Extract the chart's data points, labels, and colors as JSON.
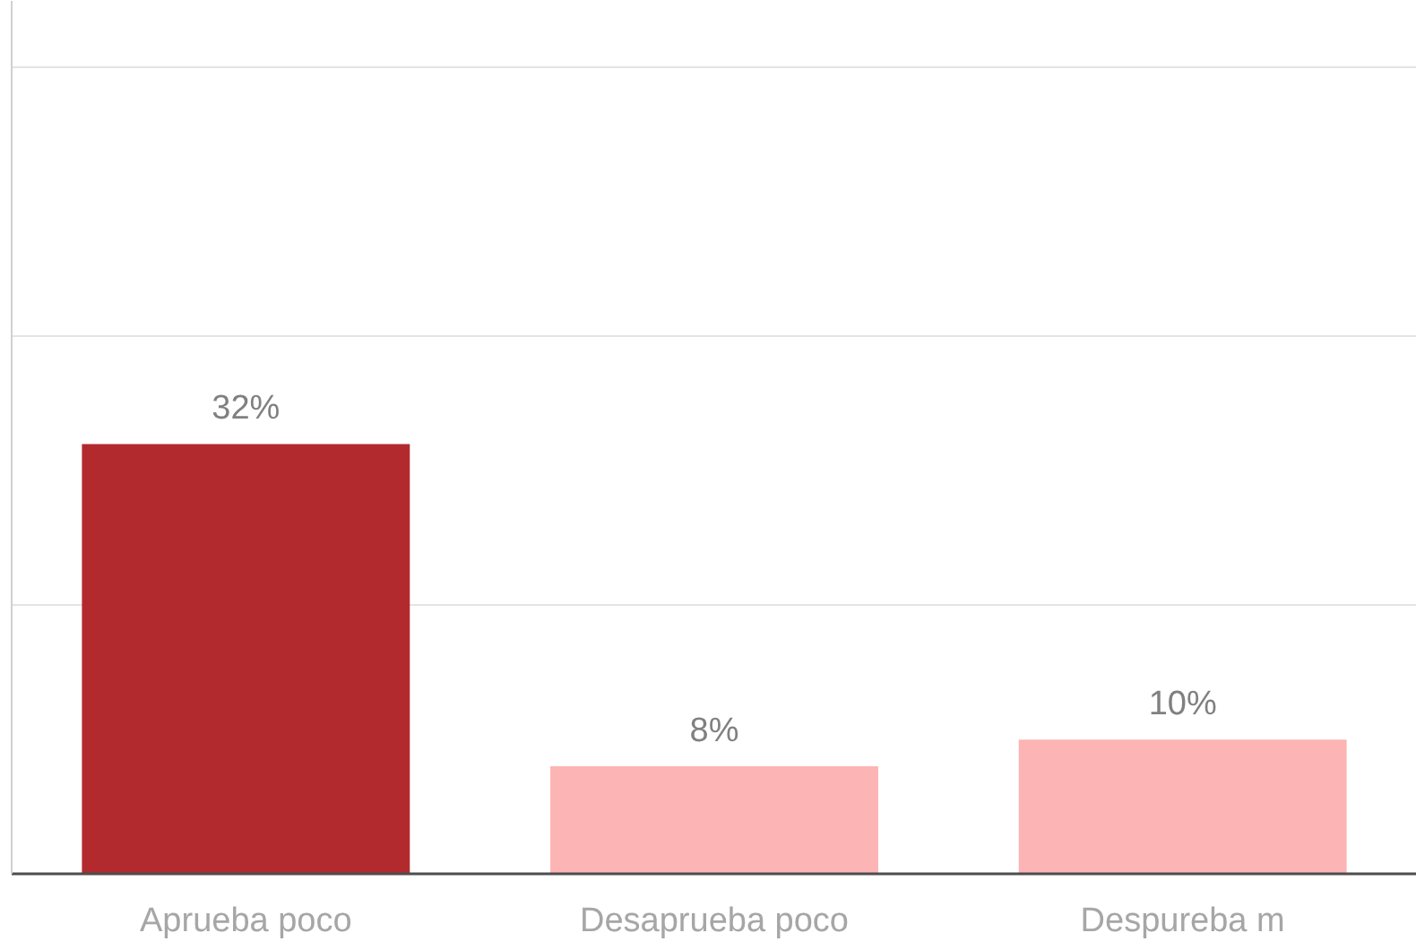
{
  "chart_data": {
    "type": "bar",
    "categories": [
      "Aprueba poco",
      "Desaprueba poco",
      "Despureba m"
    ],
    "values": [
      32,
      8,
      10
    ],
    "colors": [
      "#b22a2e",
      "#fdb4b4",
      "#fdb4b4"
    ],
    "value_labels": [
      "32%",
      "8%",
      "10%"
    ],
    "ylim": [
      0,
      65
    ],
    "yticks": [
      {
        "value": 0,
        "label": null
      },
      {
        "value": 20,
        "label": null
      },
      {
        "value": 40,
        "label": null
      },
      {
        "value": 60,
        "label": null
      }
    ],
    "grid": "y",
    "tick_labels": "x"
  }
}
